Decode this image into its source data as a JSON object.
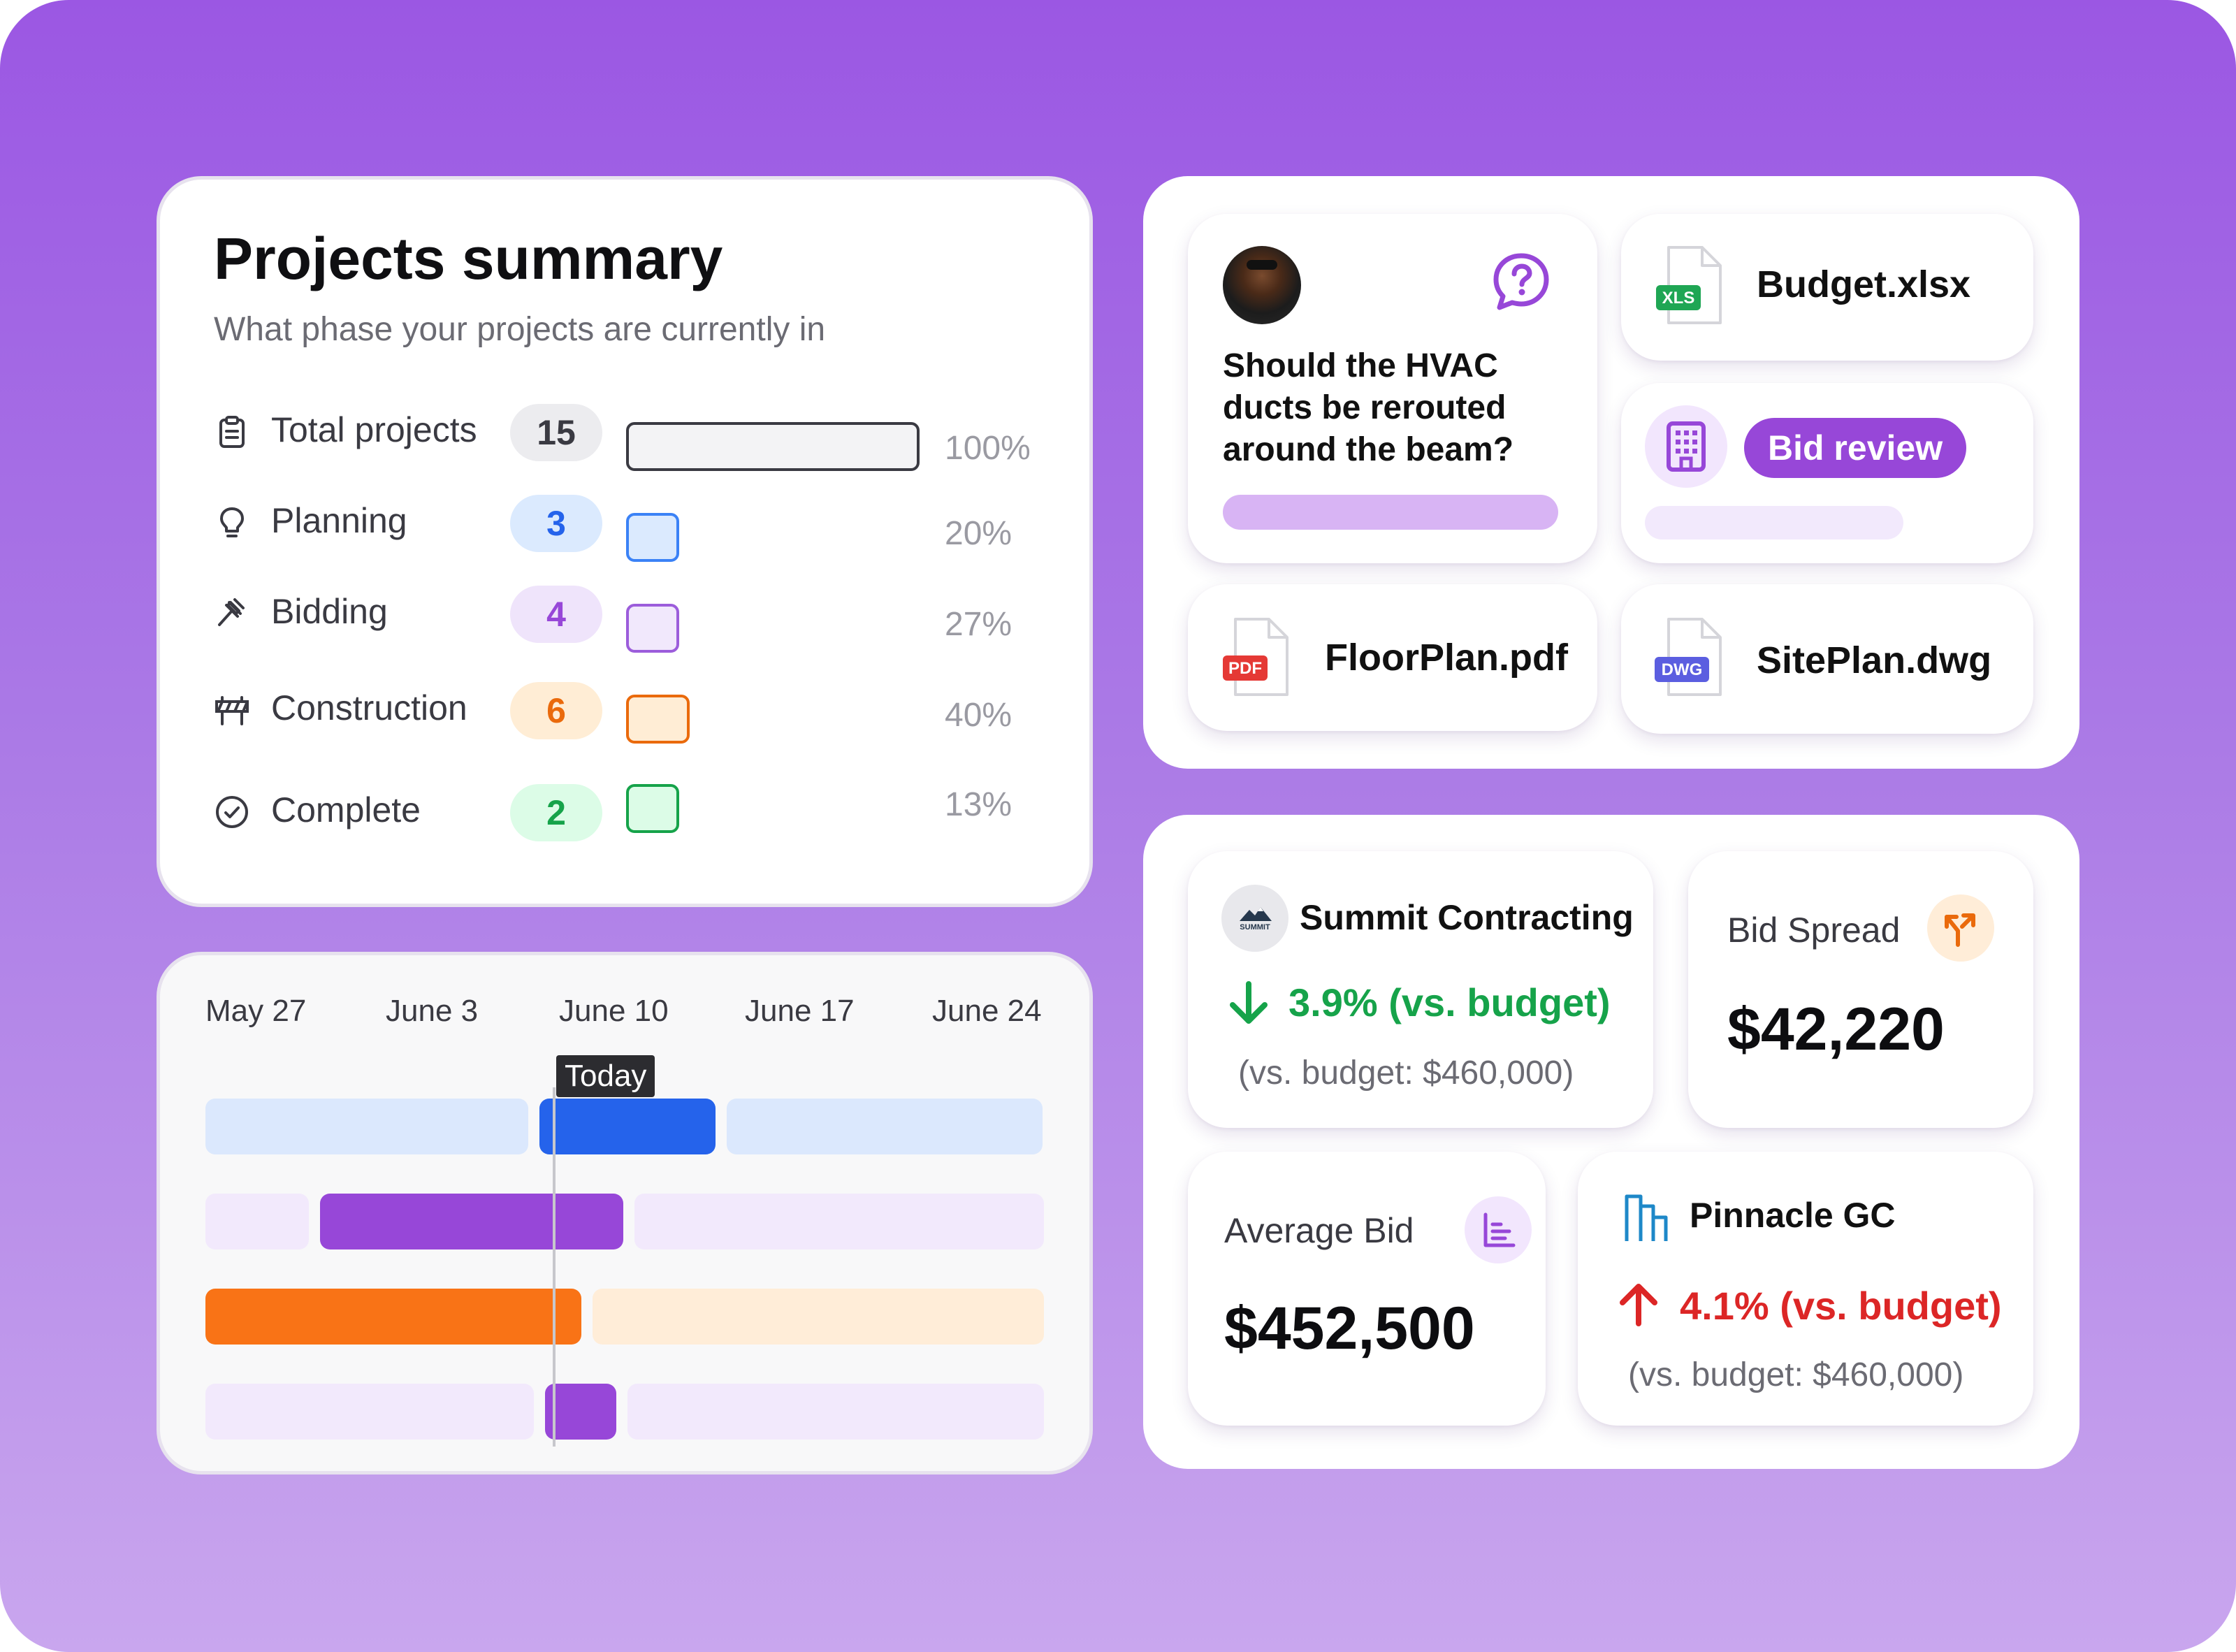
{
  "summary": {
    "title": "Projects summary",
    "subtitle": "What phase your projects are currently in",
    "rows": [
      {
        "label": "Total projects",
        "count": "15",
        "percent_label": "100%",
        "share": 1.0,
        "pill_bg": "#ececef",
        "pill_fg": "#3a3a42",
        "bar_fill": "#f3f3f5",
        "bar_border": "#3a3a42",
        "icon": "clipboard-icon"
      },
      {
        "label": "Planning",
        "count": "3",
        "percent_label": "20%",
        "share": 0.2,
        "pill_bg": "#dbeafe",
        "pill_fg": "#2563eb",
        "bar_fill": "#dbeafe",
        "bar_border": "#3b82f6",
        "icon": "lightbulb-icon"
      },
      {
        "label": "Bidding",
        "count": "4",
        "percent_label": "27%",
        "share": 0.27,
        "pill_bg": "#efe4fb",
        "pill_fg": "#9747d8",
        "bar_fill": "#f1e8fc",
        "bar_border": "#9c5ddb",
        "icon": "gavel-icon"
      },
      {
        "label": "Construction",
        "count": "6",
        "percent_label": "40%",
        "share": 0.4,
        "pill_bg": "#ffedd5",
        "pill_fg": "#ea6a0c",
        "bar_fill": "#ffedd5",
        "bar_border": "#ea6a0c",
        "icon": "barrier-icon"
      },
      {
        "label": "Complete",
        "count": "2",
        "percent_label": "13%",
        "share": 0.13,
        "pill_bg": "#dcfce7",
        "pill_fg": "#16a34a",
        "bar_fill": "#dcfce7",
        "bar_border": "#16a34a",
        "icon": "check-circle-icon"
      }
    ]
  },
  "timeline": {
    "dates": [
      "May 27",
      "June 3",
      "June 10",
      "June 17",
      "June 24"
    ],
    "today_label": "Today"
  },
  "discussion": {
    "question": "Should the HVAC ducts be rerouted around the beam?",
    "icon": "question-bubble-icon",
    "accent": "#9747d8"
  },
  "files": [
    {
      "name": "Budget.xlsx",
      "type": "XLS",
      "badge_color": "#1fa654"
    },
    {
      "name": "FloorPlan.pdf",
      "type": "PDF",
      "badge_color": "#e53935"
    },
    {
      "name": "SitePlan.dwg",
      "type": "DWG",
      "badge_color": "#5b5ee0"
    }
  ],
  "bid_review": {
    "label": "Bid review",
    "icon": "building-icon",
    "accent": "#9747d8"
  },
  "bids": {
    "summit": {
      "company": "Summit Contracting",
      "logo_text": "SUMMIT",
      "change": "3.9% (vs. budget)",
      "note": "(vs. budget: $460,000)",
      "color": "#16a34a"
    },
    "spread": {
      "label": "Bid Spread",
      "value": "$42,220",
      "icon": "split-arrows-icon"
    },
    "average": {
      "label": "Average Bid",
      "value": "$452,500",
      "icon": "bar-chart-icon"
    },
    "pinnacle": {
      "company": "Pinnacle GC",
      "change": "4.1% (vs. budget)",
      "note": "(vs. budget: $460,000)",
      "color": "#dc2626"
    }
  }
}
